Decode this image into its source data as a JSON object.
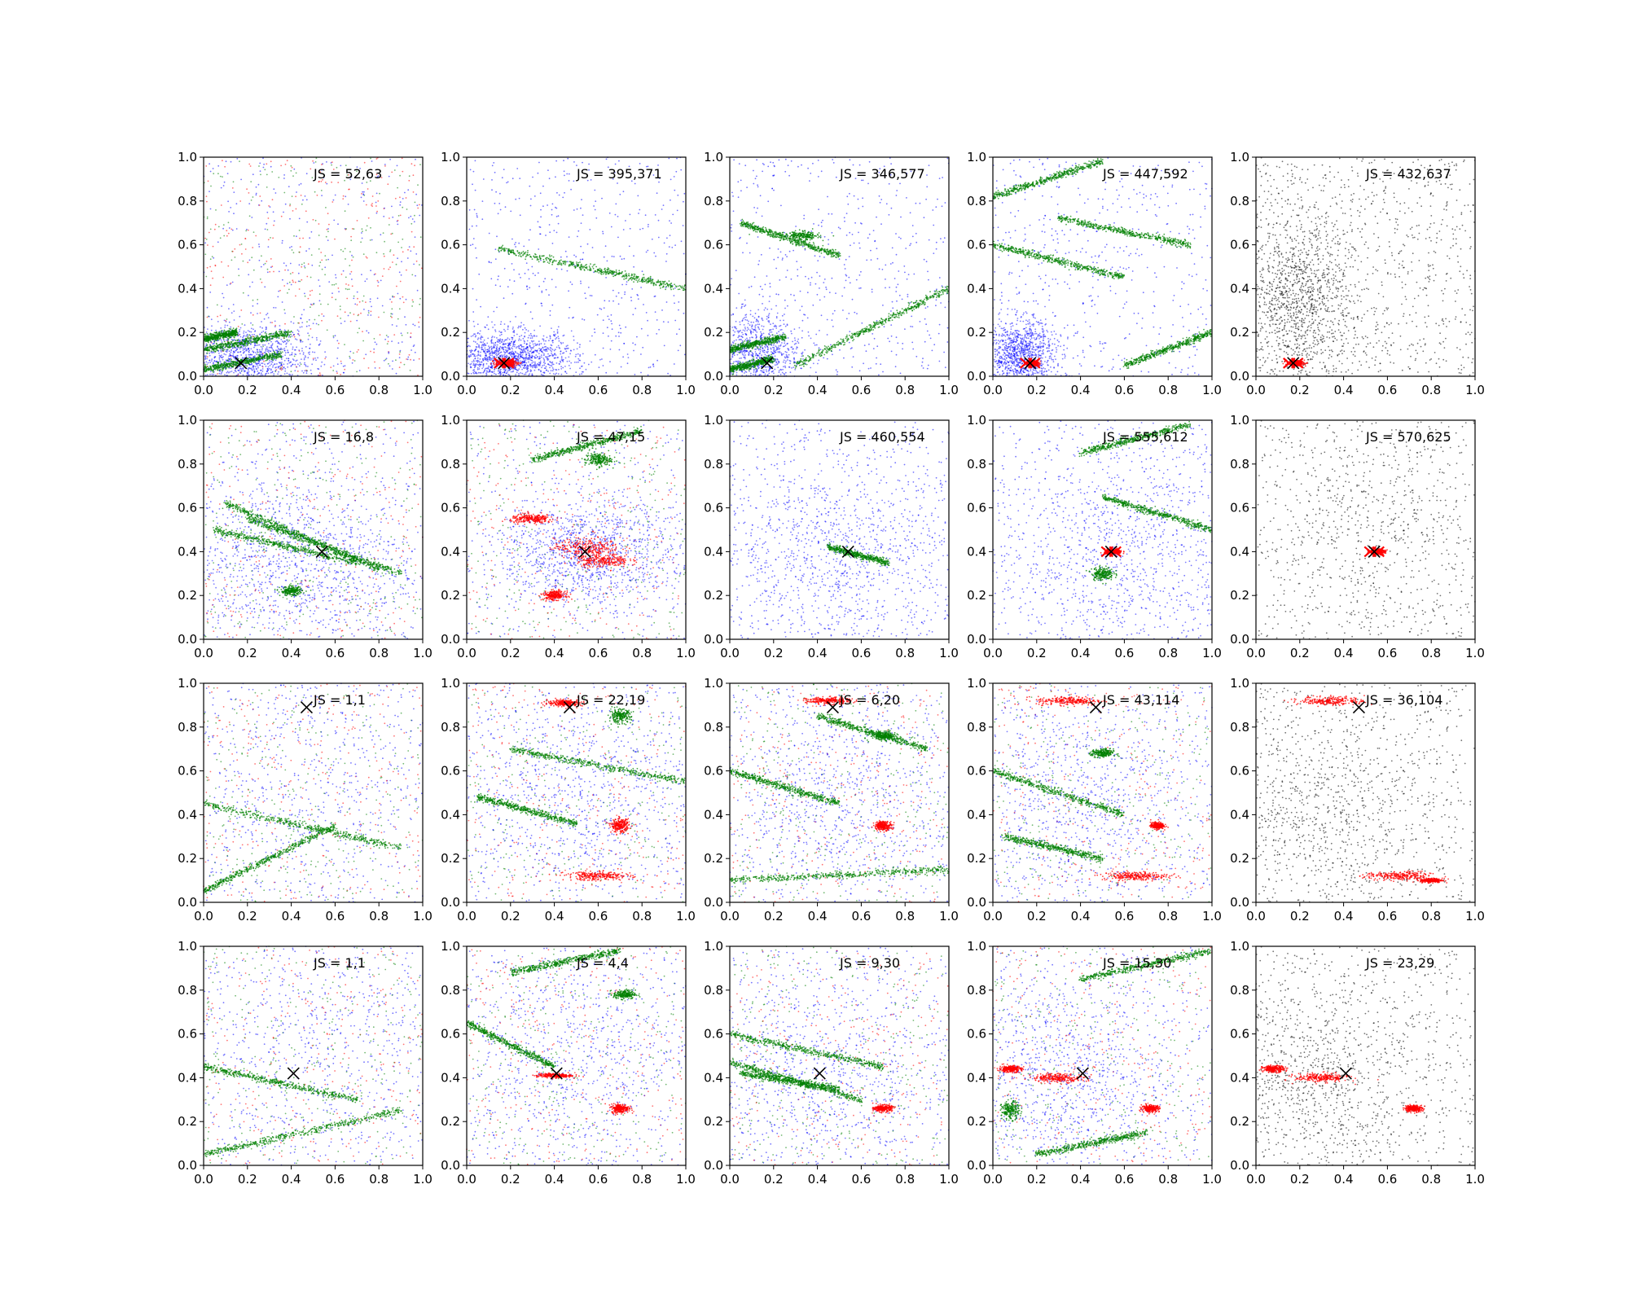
{
  "chart_data": {
    "type": "scatter",
    "grid": false,
    "layout": "4x5 grid of scatter subplots",
    "colors": {
      "blue": "#0000ff",
      "green": "#008000",
      "red": "#ff0000",
      "black": "#000000"
    },
    "axes_ticks": [
      "0.0",
      "0.2",
      "0.4",
      "0.6",
      "0.8",
      "1.0"
    ],
    "xlim": [
      0,
      1
    ],
    "ylim": [
      0,
      1
    ],
    "panels": [
      {
        "js": "JS = 52,63",
        "marker": [
          0.17,
          0.06
        ],
        "marker_color": "#000000",
        "mode": "mixed",
        "green_streaks": [
          [
            0.0,
            0.03,
            0.35,
            0.1
          ],
          [
            0.0,
            0.12,
            0.4,
            0.2
          ],
          [
            0.0,
            0.17,
            0.15,
            0.2
          ]
        ],
        "green_blobs": [],
        "red_blobs": [],
        "blue_cluster": [
          0.2,
          0.08,
          0.15,
          0.08
        ],
        "blue_density": 0.5
      },
      {
        "js": "JS = 395,371",
        "marker": [
          0.17,
          0.06
        ],
        "marker_color": "#ff0000",
        "mode": "blue-green",
        "green_streaks": [
          [
            0.15,
            0.58,
            1.0,
            0.4
          ]
        ],
        "green_blobs": [],
        "red_blobs": [
          [
            0.18,
            0.06,
            0.05,
            0.015
          ]
        ],
        "blue_cluster": [
          0.2,
          0.08,
          0.15,
          0.06
        ],
        "blue_density": 0.6
      },
      {
        "js": "JS = 346,577",
        "marker": [
          0.17,
          0.06
        ],
        "marker_color": "#000000",
        "mode": "blue-green",
        "green_streaks": [
          [
            0.0,
            0.03,
            0.2,
            0.08
          ],
          [
            0.0,
            0.12,
            0.25,
            0.18
          ],
          [
            0.05,
            0.7,
            0.5,
            0.55
          ],
          [
            0.3,
            0.05,
            1.0,
            0.4
          ]
        ],
        "green_blobs": [
          [
            0.33,
            0.64,
            0.08,
            0.02
          ]
        ],
        "red_blobs": [],
        "blue_cluster": [
          0.12,
          0.1,
          0.1,
          0.1
        ],
        "blue_density": 0.4
      },
      {
        "js": "JS = 447,592",
        "marker": [
          0.17,
          0.06
        ],
        "marker_color": "#ff0000",
        "mode": "blue-green",
        "green_streaks": [
          [
            0.0,
            0.6,
            0.6,
            0.45
          ],
          [
            0.0,
            0.82,
            0.5,
            0.98
          ],
          [
            0.3,
            0.72,
            0.9,
            0.6
          ],
          [
            0.6,
            0.05,
            1.0,
            0.2
          ]
        ],
        "green_blobs": [],
        "red_blobs": [
          [
            0.18,
            0.06,
            0.03,
            0.012
          ]
        ],
        "blue_cluster": [
          0.12,
          0.1,
          0.08,
          0.08
        ],
        "blue_density": 0.5
      },
      {
        "js": "JS = 432,637",
        "marker": [
          0.17,
          0.06
        ],
        "marker_color": "#ff0000",
        "mode": "black",
        "green_streaks": [],
        "green_blobs": [],
        "red_blobs": [
          [
            0.18,
            0.06,
            0.04,
            0.012
          ]
        ],
        "blue_cluster": [
          0.2,
          0.35,
          0.12,
          0.2
        ],
        "blue_density": 0.6
      },
      {
        "js": "JS = 16,8",
        "marker": [
          0.54,
          0.4
        ],
        "marker_color": "#000000",
        "mode": "mixed",
        "green_streaks": [
          [
            0.1,
            0.62,
            0.8,
            0.32
          ],
          [
            0.2,
            0.55,
            0.9,
            0.3
          ],
          [
            0.05,
            0.5,
            0.7,
            0.35
          ]
        ],
        "green_blobs": [
          [
            0.4,
            0.22,
            0.05,
            0.02
          ]
        ],
        "red_blobs": [],
        "blue_cluster": [
          0.4,
          0.35,
          0.3,
          0.2
        ],
        "blue_density": 0.5
      },
      {
        "js": "JS = 47,15",
        "marker": [
          0.54,
          0.4
        ],
        "marker_color": "#000000",
        "mode": "mixed",
        "green_streaks": [
          [
            0.3,
            0.82,
            0.8,
            0.95
          ]
        ],
        "green_blobs": [
          [
            0.6,
            0.82,
            0.06,
            0.03
          ]
        ],
        "red_blobs": [
          [
            0.55,
            0.42,
            0.15,
            0.04
          ],
          [
            0.62,
            0.36,
            0.12,
            0.03
          ],
          [
            0.3,
            0.55,
            0.1,
            0.02
          ],
          [
            0.4,
            0.2,
            0.05,
            0.02
          ]
        ],
        "blue_cluster": [
          0.55,
          0.4,
          0.2,
          0.12
        ],
        "blue_density": 0.5
      },
      {
        "js": "JS = 460,554",
        "marker": [
          0.54,
          0.4
        ],
        "marker_color": "#000000",
        "mode": "blue-green",
        "green_streaks": [
          [
            0.45,
            0.42,
            0.72,
            0.35
          ]
        ],
        "green_blobs": [],
        "red_blobs": [],
        "blue_cluster": [
          0.5,
          0.4,
          0.3,
          0.2
        ],
        "blue_density": 0.4
      },
      {
        "js": "JS = 555,612",
        "marker": [
          0.54,
          0.4
        ],
        "marker_color": "#ff0000",
        "mode": "blue-green",
        "green_streaks": [
          [
            0.4,
            0.85,
            0.9,
            0.98
          ],
          [
            0.5,
            0.65,
            1.0,
            0.5
          ]
        ],
        "green_blobs": [
          [
            0.5,
            0.3,
            0.05,
            0.03
          ]
        ],
        "red_blobs": [
          [
            0.55,
            0.4,
            0.04,
            0.012
          ]
        ],
        "blue_cluster": [
          0.6,
          0.4,
          0.3,
          0.25
        ],
        "blue_density": 0.4
      },
      {
        "js": "JS = 570,625",
        "marker": [
          0.54,
          0.4
        ],
        "marker_color": "#ff0000",
        "mode": "black",
        "green_streaks": [],
        "green_blobs": [],
        "red_blobs": [
          [
            0.55,
            0.4,
            0.04,
            0.012
          ]
        ],
        "blue_cluster": [
          0.5,
          0.5,
          0.3,
          0.3
        ],
        "blue_density": 0.2
      },
      {
        "js": "JS = 1,1",
        "marker": [
          0.47,
          0.89
        ],
        "marker_color": "#000000",
        "mode": "mixed",
        "green_streaks": [
          [
            0.0,
            0.45,
            0.9,
            0.25
          ],
          [
            0.0,
            0.05,
            0.6,
            0.35
          ]
        ],
        "green_blobs": [],
        "red_blobs": [],
        "blue_cluster": [
          0.5,
          0.5,
          0.3,
          0.3
        ],
        "blue_density": 0.2
      },
      {
        "js": "JS = 22,19",
        "marker": [
          0.47,
          0.89
        ],
        "marker_color": "#000000",
        "mode": "mixed",
        "green_streaks": [
          [
            0.05,
            0.48,
            0.5,
            0.36
          ],
          [
            0.2,
            0.7,
            1.0,
            0.55
          ]
        ],
        "green_blobs": [
          [
            0.7,
            0.85,
            0.05,
            0.03
          ]
        ],
        "red_blobs": [
          [
            0.45,
            0.91,
            0.08,
            0.015
          ],
          [
            0.7,
            0.35,
            0.04,
            0.03
          ],
          [
            0.6,
            0.12,
            0.15,
            0.02
          ]
        ],
        "blue_cluster": [
          0.5,
          0.5,
          0.3,
          0.25
        ],
        "blue_density": 0.35
      },
      {
        "js": "JS = 6,20",
        "marker": [
          0.47,
          0.89
        ],
        "marker_color": "#000000",
        "mode": "mixed",
        "green_streaks": [
          [
            0.0,
            0.6,
            0.5,
            0.45
          ],
          [
            0.4,
            0.85,
            0.9,
            0.7
          ],
          [
            0.0,
            0.1,
            1.0,
            0.15
          ]
        ],
        "green_blobs": [
          [
            0.7,
            0.76,
            0.06,
            0.02
          ]
        ],
        "red_blobs": [
          [
            0.45,
            0.92,
            0.1,
            0.015
          ],
          [
            0.7,
            0.35,
            0.04,
            0.02
          ]
        ],
        "blue_cluster": [
          0.5,
          0.5,
          0.3,
          0.25
        ],
        "blue_density": 0.35
      },
      {
        "js": "JS = 43,114",
        "marker": [
          0.47,
          0.89
        ],
        "marker_color": "#000000",
        "mode": "mixed",
        "green_streaks": [
          [
            0.0,
            0.6,
            0.6,
            0.4
          ],
          [
            0.05,
            0.3,
            0.5,
            0.2
          ]
        ],
        "green_blobs": [
          [
            0.5,
            0.68,
            0.05,
            0.02
          ]
        ],
        "red_blobs": [
          [
            0.35,
            0.92,
            0.15,
            0.02
          ],
          [
            0.65,
            0.12,
            0.15,
            0.02
          ],
          [
            0.75,
            0.35,
            0.03,
            0.015
          ]
        ],
        "blue_cluster": [
          0.4,
          0.45,
          0.3,
          0.25
        ],
        "blue_density": 0.35
      },
      {
        "js": "JS = 36,104",
        "marker": [
          0.47,
          0.89
        ],
        "marker_color": "#000000",
        "mode": "black",
        "green_streaks": [],
        "green_blobs": [],
        "red_blobs": [
          [
            0.35,
            0.92,
            0.15,
            0.02
          ],
          [
            0.65,
            0.12,
            0.15,
            0.02
          ],
          [
            0.8,
            0.1,
            0.05,
            0.01
          ]
        ],
        "blue_cluster": [
          0.3,
          0.4,
          0.25,
          0.25
        ],
        "blue_density": 0.3
      },
      {
        "js": "JS = 1,1",
        "marker": [
          0.41,
          0.42
        ],
        "marker_color": "#000000",
        "mode": "mixed",
        "green_streaks": [
          [
            0.0,
            0.45,
            0.7,
            0.3
          ],
          [
            0.0,
            0.05,
            0.9,
            0.25
          ]
        ],
        "green_blobs": [],
        "red_blobs": [],
        "blue_cluster": [
          0.5,
          0.5,
          0.3,
          0.3
        ],
        "blue_density": 0.2
      },
      {
        "js": "JS = 4,4",
        "marker": [
          0.41,
          0.42
        ],
        "marker_color": "#000000",
        "mode": "mixed",
        "green_streaks": [
          [
            0.0,
            0.65,
            0.4,
            0.45
          ],
          [
            0.2,
            0.88,
            0.7,
            0.98
          ]
        ],
        "green_blobs": [
          [
            0.72,
            0.78,
            0.05,
            0.02
          ]
        ],
        "red_blobs": [
          [
            0.7,
            0.26,
            0.04,
            0.02
          ],
          [
            0.4,
            0.41,
            0.08,
            0.01
          ]
        ],
        "blue_cluster": [
          0.5,
          0.5,
          0.3,
          0.25
        ],
        "blue_density": 0.3
      },
      {
        "js": "JS = 9,30",
        "marker": [
          0.41,
          0.42
        ],
        "marker_color": "#000000",
        "mode": "mixed",
        "green_streaks": [
          [
            0.0,
            0.6,
            0.7,
            0.45
          ],
          [
            0.0,
            0.47,
            0.6,
            0.3
          ],
          [
            0.05,
            0.42,
            0.5,
            0.35
          ]
        ],
        "green_blobs": [],
        "red_blobs": [
          [
            0.7,
            0.26,
            0.04,
            0.015
          ]
        ],
        "blue_cluster": [
          0.4,
          0.4,
          0.3,
          0.25
        ],
        "blue_density": 0.35
      },
      {
        "js": "JS = 15,30",
        "marker": [
          0.41,
          0.42
        ],
        "marker_color": "#000000",
        "mode": "mixed",
        "green_streaks": [
          [
            0.4,
            0.85,
            1.0,
            0.98
          ],
          [
            0.2,
            0.05,
            0.7,
            0.15
          ]
        ],
        "green_blobs": [
          [
            0.08,
            0.25,
            0.04,
            0.04
          ]
        ],
        "red_blobs": [
          [
            0.3,
            0.4,
            0.12,
            0.02
          ],
          [
            0.08,
            0.44,
            0.05,
            0.015
          ],
          [
            0.72,
            0.26,
            0.04,
            0.015
          ]
        ],
        "blue_cluster": [
          0.3,
          0.4,
          0.25,
          0.25
        ],
        "blue_density": 0.4
      },
      {
        "js": "JS = 23,29",
        "marker": [
          0.41,
          0.42
        ],
        "marker_color": "#000000",
        "mode": "black",
        "green_streaks": [],
        "green_blobs": [],
        "red_blobs": [
          [
            0.3,
            0.4,
            0.12,
            0.02
          ],
          [
            0.08,
            0.44,
            0.05,
            0.015
          ],
          [
            0.72,
            0.26,
            0.04,
            0.015
          ]
        ],
        "blue_cluster": [
          0.25,
          0.4,
          0.25,
          0.25
        ],
        "blue_density": 0.35
      }
    ]
  }
}
